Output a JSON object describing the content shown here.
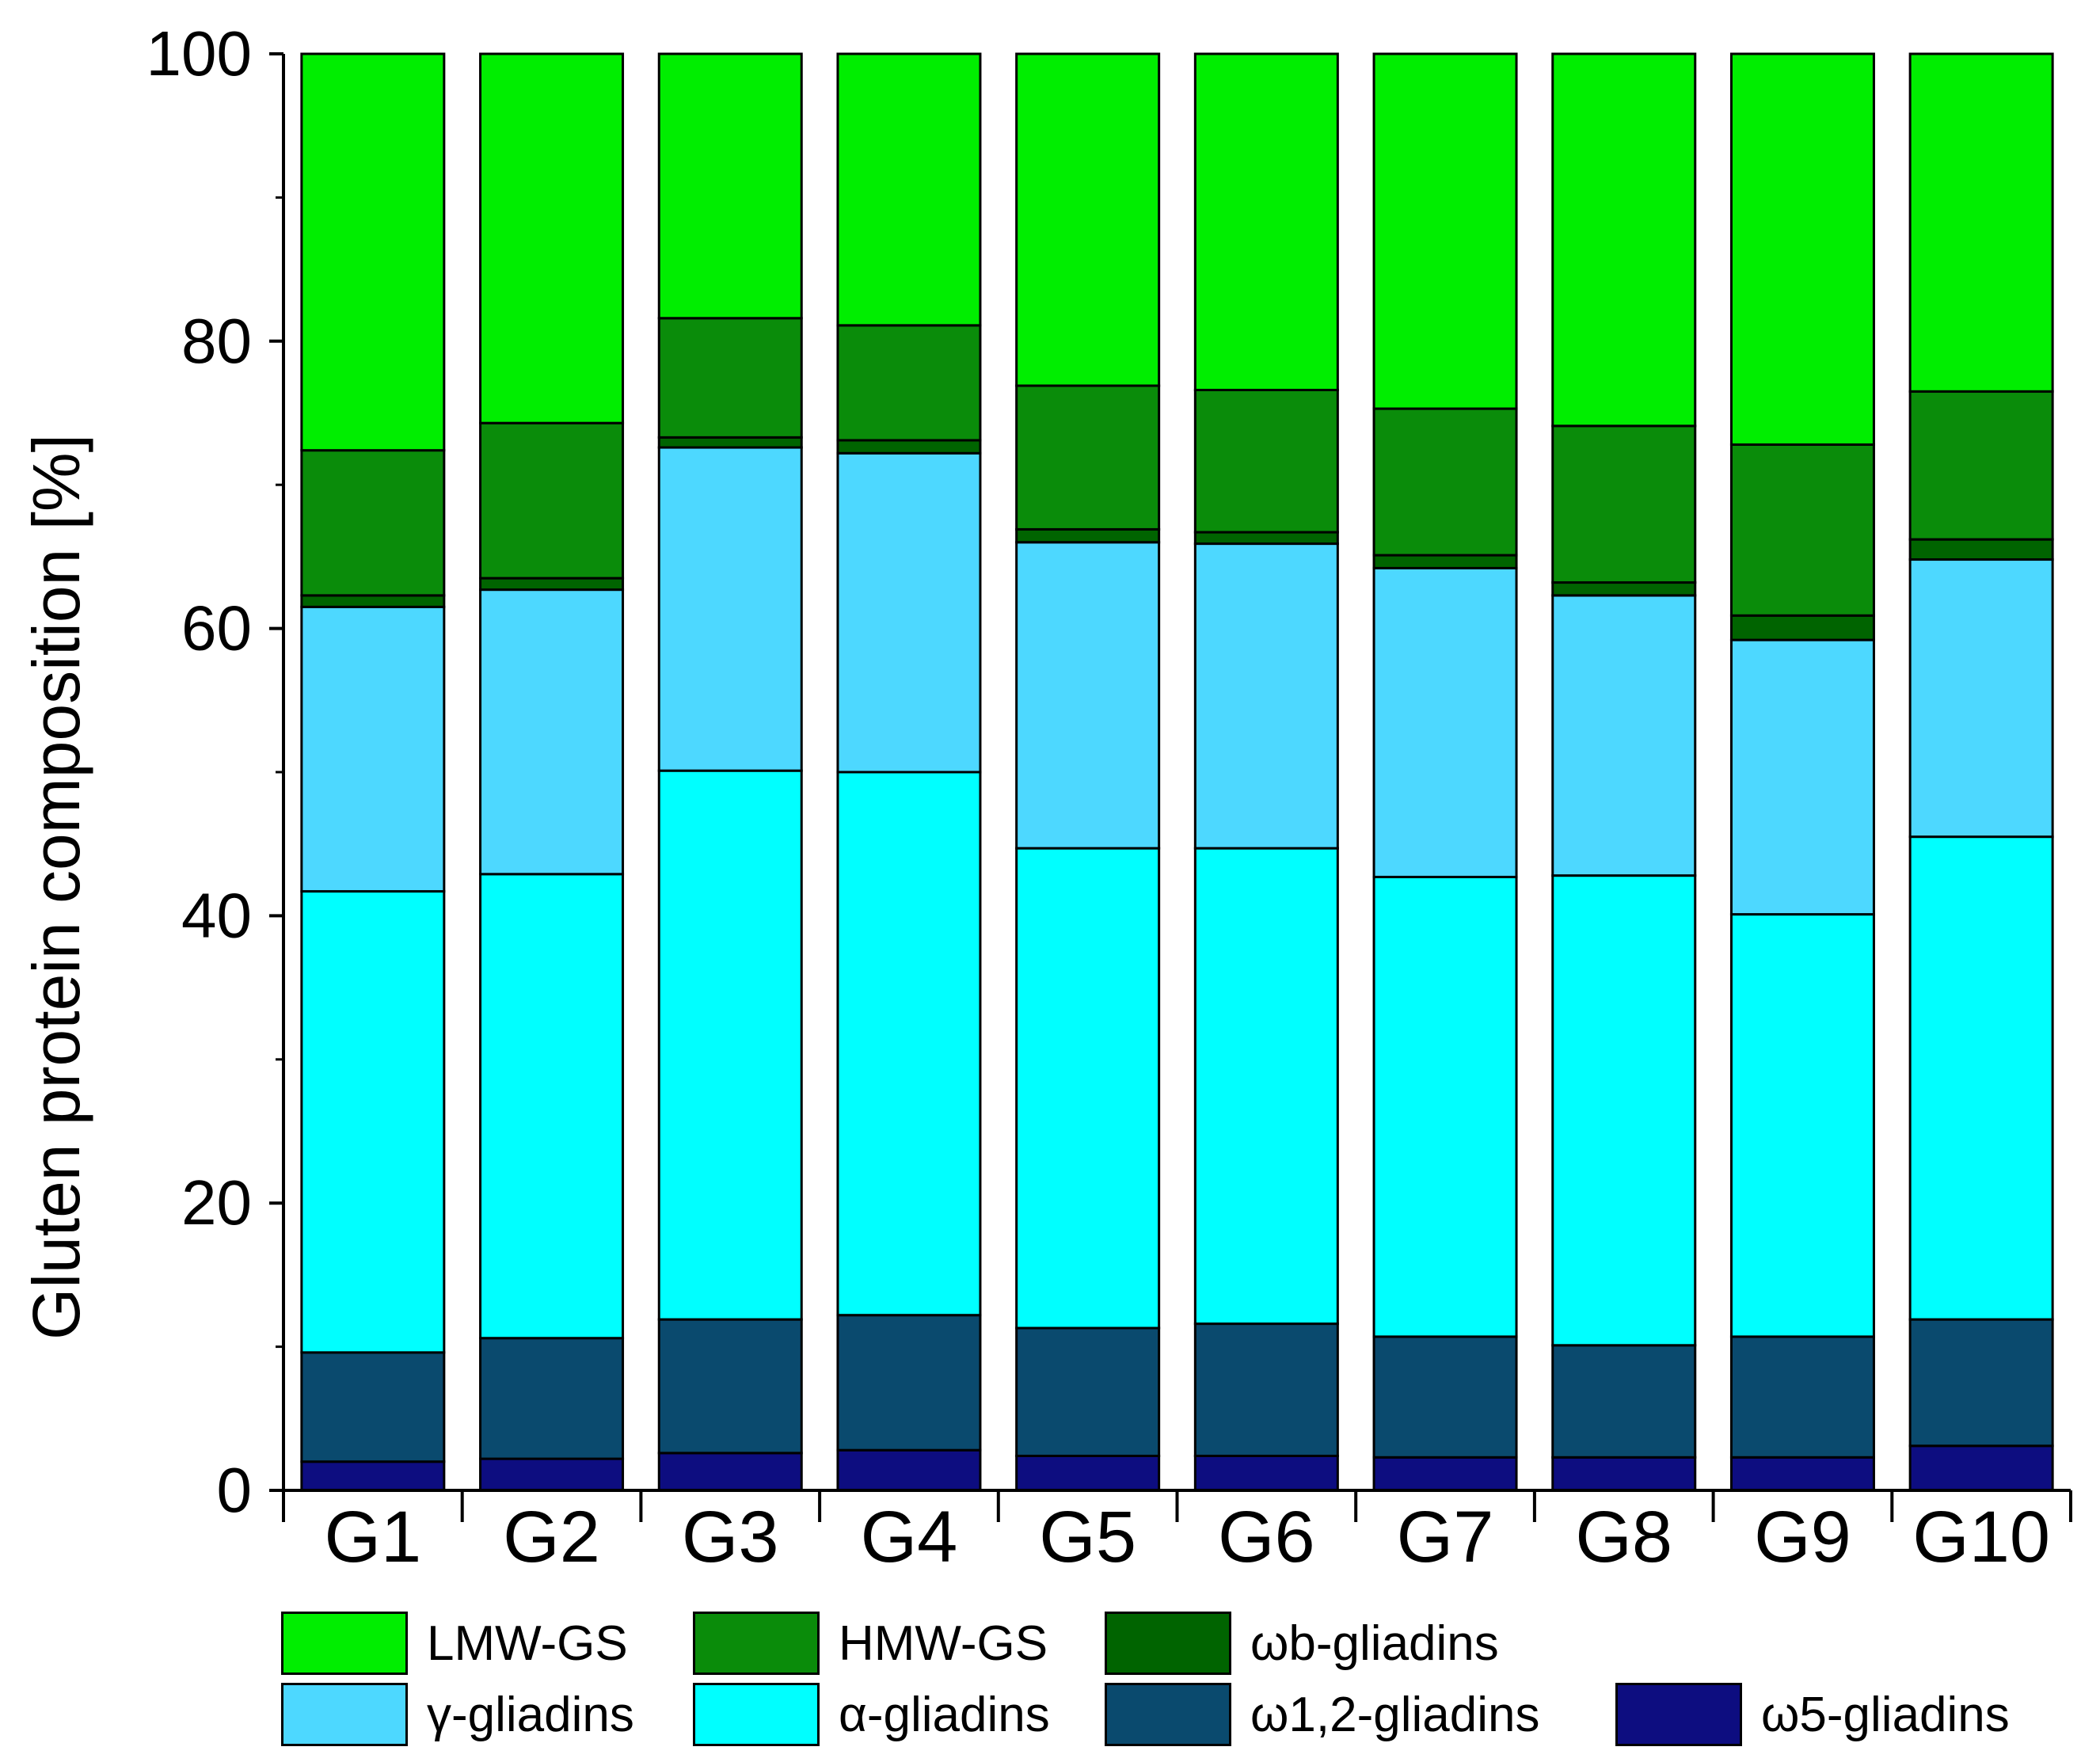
{
  "chart_data": {
    "type": "bar",
    "stacked": true,
    "title": "",
    "xlabel": "",
    "ylabel": "Gluten protein composition [%]",
    "ylim": [
      0,
      100
    ],
    "yticks": [
      0,
      20,
      40,
      60,
      80,
      100
    ],
    "grid": false,
    "legend_position": "bottom",
    "categories": [
      "G1",
      "G2",
      "G3",
      "G4",
      "G5",
      "G6",
      "G7",
      "G8",
      "G9",
      "G10"
    ],
    "series": [
      {
        "name": "ω5-gliadins",
        "color": "#0d0d80",
        "values": [
          2.0,
          2.2,
          2.6,
          2.8,
          2.4,
          2.4,
          2.3,
          2.3,
          2.3,
          3.1
        ]
      },
      {
        "name": "ω1,2-gliadins",
        "color": "#0a4a6e",
        "values": [
          7.6,
          8.4,
          9.3,
          9.4,
          8.9,
          9.2,
          8.4,
          7.8,
          8.4,
          8.8
        ]
      },
      {
        "name": "α-gliadins",
        "color": "#00ffff",
        "values": [
          32.1,
          32.3,
          38.2,
          37.8,
          33.4,
          33.1,
          32.0,
          32.7,
          29.4,
          33.6
        ]
      },
      {
        "name": "γ-gliadins",
        "color": "#4dd8ff",
        "values": [
          19.8,
          19.8,
          22.5,
          22.2,
          21.3,
          21.2,
          21.5,
          19.5,
          19.1,
          19.3
        ]
      },
      {
        "name": "ωb-gliadins",
        "color": "#006400",
        "values": [
          0.8,
          0.8,
          0.7,
          0.9,
          0.9,
          0.8,
          0.9,
          0.9,
          1.7,
          1.4
        ]
      },
      {
        "name": "HMW-GS",
        "color": "#0a8c0a",
        "values": [
          10.1,
          10.8,
          8.3,
          8.0,
          10.0,
          9.9,
          10.2,
          10.9,
          11.9,
          10.3
        ]
      },
      {
        "name": "LMW-GS",
        "color": "#00ee00",
        "values": [
          27.6,
          25.7,
          18.4,
          18.9,
          23.1,
          23.4,
          24.7,
          25.9,
          27.2,
          23.5
        ]
      }
    ],
    "legend_order": [
      "LMW-GS",
      "HMW-GS",
      "ωb-gliadins",
      "γ-gliadins",
      "α-gliadins",
      "ω1,2-gliadins",
      "ω5-gliadins"
    ]
  },
  "legend": {
    "items": [
      {
        "label": "LMW-GS",
        "color": "#00ee00"
      },
      {
        "label": "HMW-GS",
        "color": "#0a8c0a"
      },
      {
        "label": "ωb-gliadins",
        "color": "#006400"
      },
      {
        "label": "γ-gliadins",
        "color": "#4dd8ff"
      },
      {
        "label": "α-gliadins",
        "color": "#00ffff"
      },
      {
        "label": "ω1,2-gliadins",
        "color": "#0a4a6e"
      },
      {
        "label": "ω5-gliadins",
        "color": "#0d0d80"
      }
    ]
  }
}
